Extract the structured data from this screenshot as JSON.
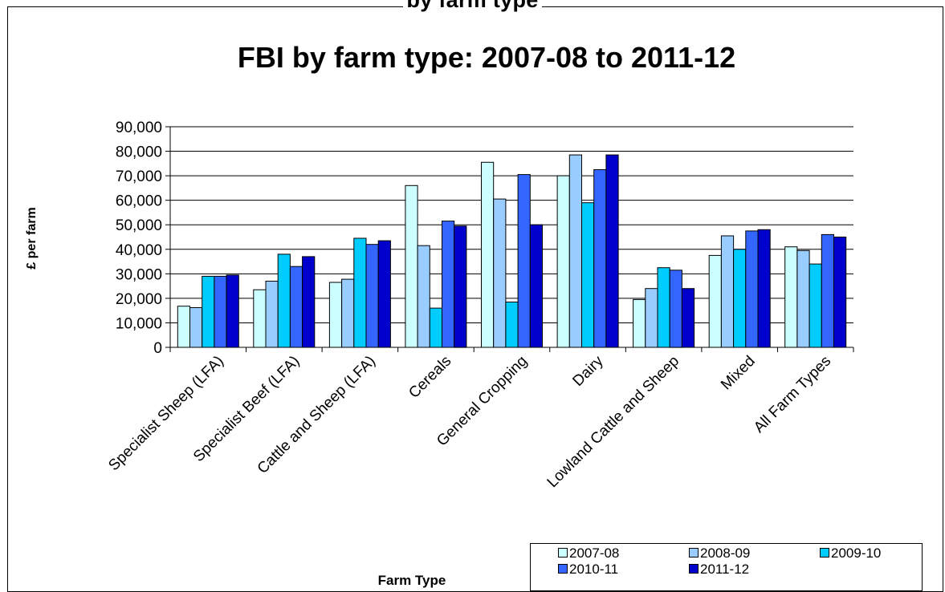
{
  "header_cut_text": "by farm type",
  "chart_data": {
    "type": "bar",
    "title": "FBI by farm type: 2007-08 to 2011-12",
    "xlabel": "Farm Type",
    "ylabel": "£ per farm",
    "ylim": [
      0,
      90000
    ],
    "yticks": [
      "0",
      "10,000",
      "20,000",
      "30,000",
      "40,000",
      "50,000",
      "60,000",
      "70,000",
      "80,000",
      "90,000"
    ],
    "ytick_values": [
      0,
      10000,
      20000,
      30000,
      40000,
      50000,
      60000,
      70000,
      80000,
      90000
    ],
    "grid": "horizontal",
    "legend_position": "bottom-right",
    "categories": [
      "Specialist Sheep (LFA)",
      "Specialist Beef  (LFA)",
      "Cattle and Sheep (LFA)",
      "Cereals",
      "General Cropping",
      "Dairy",
      "Lowland Cattle and Sheep",
      "Mixed",
      "All Farm Types"
    ],
    "series": [
      {
        "name": "2007-08",
        "color": "#ccffff",
        "values": [
          16800,
          23500,
          26500,
          66000,
          75500,
          70000,
          19500,
          37500,
          41000
        ]
      },
      {
        "name": "2008-09",
        "color": "#99ccff",
        "values": [
          16200,
          27000,
          27800,
          41500,
          60500,
          78500,
          24000,
          45500,
          39500
        ]
      },
      {
        "name": "2009-10",
        "color": "#00ccff",
        "values": [
          29000,
          38000,
          44500,
          16000,
          18500,
          59000,
          32500,
          40000,
          34000
        ]
      },
      {
        "name": "2010-11",
        "color": "#3366ff",
        "values": [
          29000,
          33000,
          42000,
          51500,
          70500,
          72500,
          31500,
          47500,
          46000
        ]
      },
      {
        "name": "2011-12",
        "color": "#0000cc",
        "values": [
          29500,
          37000,
          43500,
          49500,
          50000,
          78500,
          24000,
          48000,
          45000
        ]
      }
    ]
  }
}
